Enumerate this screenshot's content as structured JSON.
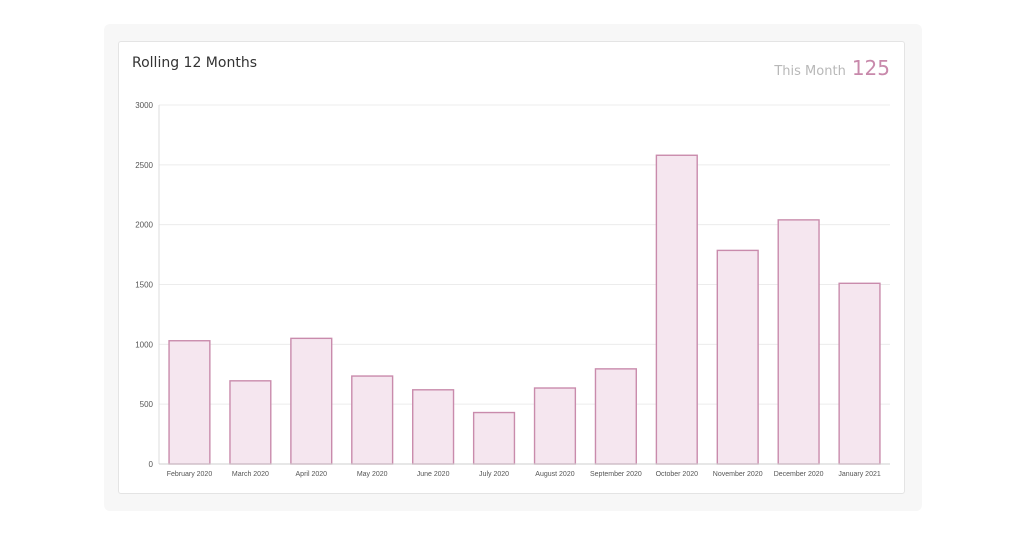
{
  "card": {
    "title": "Rolling 12 Months",
    "metric_label": "This Month",
    "metric_value": "125"
  },
  "colors": {
    "bar_fill": "#f5e6ef",
    "bar_stroke": "#c98bac",
    "metric_accent": "#c889ab",
    "gridline": "#ececec",
    "tick_text": "#555555"
  },
  "chart_data": {
    "type": "bar",
    "categories": [
      "February 2020",
      "March 2020",
      "April 2020",
      "May 2020",
      "June 2020",
      "July 2020",
      "August 2020",
      "September 2020",
      "October 2020",
      "November 2020",
      "December 2020",
      "January 2021"
    ],
    "values": [
      1030,
      695,
      1050,
      735,
      620,
      430,
      635,
      795,
      2580,
      1785,
      2040,
      1510
    ],
    "yticks": [
      0,
      500,
      1000,
      1500,
      2000,
      2500,
      3000
    ],
    "ylim": [
      0,
      3000
    ],
    "title": "",
    "xlabel": "",
    "ylabel": "",
    "grid": true
  }
}
